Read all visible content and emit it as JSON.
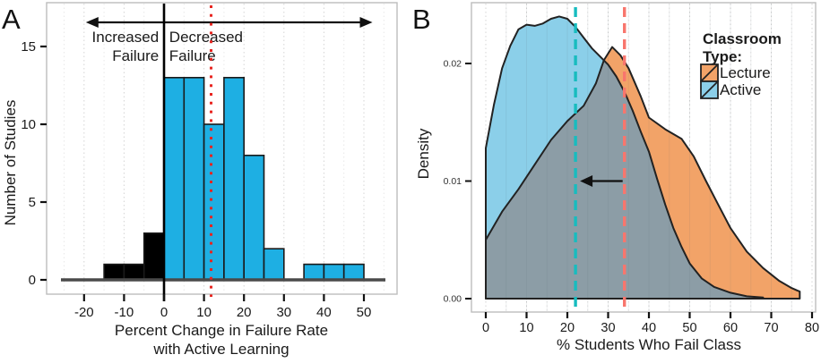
{
  "panels": {
    "a": {
      "label": "A",
      "y_axis_title": "Number of Studies",
      "x_axis_title_line1": "Percent Change in Failure Rate",
      "x_axis_title_line2": "with Active Learning",
      "annotation_left_line1": "Increased",
      "annotation_left_line2": "Failure",
      "annotation_right_line1": "Decreased",
      "annotation_right_line2": "Failure"
    },
    "b": {
      "label": "B",
      "y_axis_title": "Density",
      "x_axis_title": "% Students Who Fail Class",
      "legend": {
        "title_line1": "Classroom",
        "title_line2": "Type:",
        "items": [
          {
            "label": "Lecture",
            "color": "#f2a368"
          },
          {
            "label": "Active",
            "color": "#8bcfe9"
          }
        ]
      }
    }
  },
  "colors": {
    "histogram_increased": "#000000",
    "histogram_decreased": "#1eafe3",
    "bar_outline": "#1a1a1a",
    "curve_outline": "#222222",
    "lecture_fill": "#f2a368",
    "active_fill": "#8bcfe9",
    "overlap_fill": "#8c9da6",
    "lecture_mean_line": "#f8766d",
    "active_mean_line": "#17bcbf",
    "red_dotted_line": "#e8241f",
    "zero_line": "#000000",
    "baseline": "#4a4a4a",
    "frame": "#bdbdbd",
    "grid_major": "#d4d4d4",
    "grid_minor": "#e8e8e8",
    "arrow": "#111111"
  },
  "chart_data": [
    {
      "type": "bar",
      "panel": "A",
      "title": "Histogram of studies by percent change in failure rate",
      "xlabel": "Percent Change in Failure Rate with Active Learning",
      "ylabel": "Number of Studies",
      "xlim": [
        -25,
        55
      ],
      "ylim": [
        0,
        16.5
      ],
      "x_ticks": [
        -20,
        -10,
        0,
        10,
        20,
        30,
        40,
        50
      ],
      "y_ticks": [
        0,
        5,
        10,
        15
      ],
      "bin_width": 5,
      "bins": [
        {
          "x0": -15,
          "x1": -10,
          "count": 1,
          "group": "increased"
        },
        {
          "x0": -10,
          "x1": -5,
          "count": 1,
          "group": "increased"
        },
        {
          "x0": -5,
          "x1": 0,
          "count": 3,
          "group": "increased"
        },
        {
          "x0": 0,
          "x1": 5,
          "count": 13,
          "group": "decreased"
        },
        {
          "x0": 5,
          "x1": 10,
          "count": 13,
          "group": "decreased"
        },
        {
          "x0": 10,
          "x1": 15,
          "count": 10,
          "group": "decreased"
        },
        {
          "x0": 15,
          "x1": 20,
          "count": 13,
          "group": "decreased"
        },
        {
          "x0": 20,
          "x1": 25,
          "count": 8,
          "group": "decreased"
        },
        {
          "x0": 25,
          "x1": 30,
          "count": 2,
          "group": "decreased"
        },
        {
          "x0": 35,
          "x1": 40,
          "count": 1,
          "group": "decreased"
        },
        {
          "x0": 40,
          "x1": 45,
          "count": 1,
          "group": "decreased"
        },
        {
          "x0": 45,
          "x1": 50,
          "count": 1,
          "group": "decreased"
        }
      ],
      "zero_line_x": 0,
      "mean_line_x": 12,
      "top_arrow": {
        "x_start": -20,
        "x_end": 49
      },
      "grid": "vertical-dotted"
    },
    {
      "type": "area",
      "panel": "B",
      "title": "Kernel density of percent of students failing, by classroom type",
      "xlabel": "% Students Who Fail Class",
      "ylabel": "Density",
      "xlim": [
        0,
        80
      ],
      "ylim": [
        0,
        0.025
      ],
      "x_ticks": [
        0,
        10,
        20,
        30,
        40,
        50,
        60,
        70,
        80
      ],
      "y_ticks": [
        "0.00",
        "0.01",
        "0.02"
      ],
      "y_tick_values": [
        0,
        0.01,
        0.02
      ],
      "legend_position": "top-right",
      "series": [
        {
          "name": "Lecture",
          "mean_x": 34,
          "x": [
            0,
            4,
            8,
            12,
            16,
            20,
            24,
            27,
            29,
            31,
            33,
            35,
            38,
            40,
            44,
            48,
            51,
            54,
            57,
            60,
            64,
            68,
            72,
            75,
            77
          ],
          "density": [
            0.005,
            0.0074,
            0.0093,
            0.0114,
            0.0135,
            0.0151,
            0.0164,
            0.0183,
            0.0203,
            0.0214,
            0.0207,
            0.0196,
            0.0172,
            0.0154,
            0.0144,
            0.0136,
            0.0121,
            0.01,
            0.008,
            0.006,
            0.004,
            0.0026,
            0.0015,
            0.0009,
            0.0006
          ]
        },
        {
          "name": "Active",
          "mean_x": 22,
          "x": [
            0,
            2,
            4,
            6,
            8,
            10,
            12,
            14,
            16,
            18,
            20,
            22,
            24,
            26,
            28,
            30,
            32,
            34,
            36,
            38,
            40,
            42,
            44,
            46,
            48,
            50,
            53,
            56,
            60,
            64,
            68
          ],
          "density": [
            0.0128,
            0.0165,
            0.0196,
            0.0215,
            0.0229,
            0.0233,
            0.0232,
            0.0234,
            0.0238,
            0.024,
            0.0238,
            0.0231,
            0.0222,
            0.0213,
            0.0206,
            0.0199,
            0.0189,
            0.0176,
            0.016,
            0.0142,
            0.0125,
            0.0102,
            0.008,
            0.006,
            0.0044,
            0.003,
            0.0017,
            0.001,
            0.0005,
            0.0002,
            0.0001
          ]
        }
      ],
      "arrow": {
        "from_x": 34,
        "to_x": 22,
        "y": 0.01
      }
    }
  ]
}
